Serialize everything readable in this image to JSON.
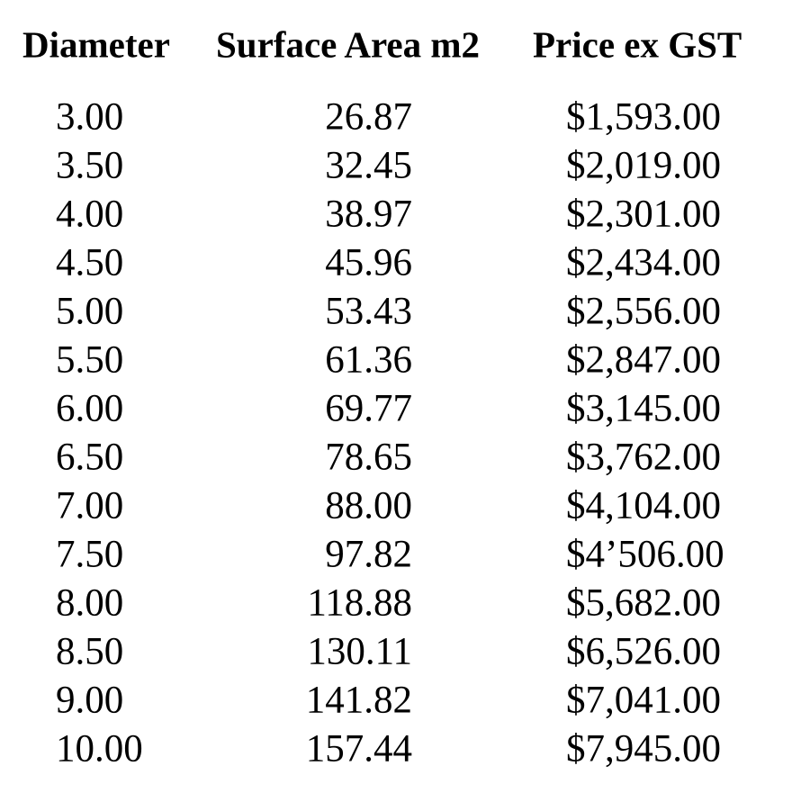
{
  "table": {
    "header": [
      "Diameter",
      "Surface Area m2",
      "Price ex GST"
    ],
    "rows": [
      [
        "3.00",
        "26.87",
        "$1,593.00"
      ],
      [
        "3.50",
        "32.45",
        "$2,019.00"
      ],
      [
        "4.00",
        "38.97",
        "$2,301.00"
      ],
      [
        "4.50",
        "45.96",
        "$2,434.00"
      ],
      [
        "5.00",
        "53.43",
        "$2,556.00"
      ],
      [
        "5.50",
        "61.36",
        "$2,847.00"
      ],
      [
        "6.00",
        "69.77",
        "$3,145.00"
      ],
      [
        "6.50",
        "78.65",
        "$3,762.00"
      ],
      [
        "7.00",
        "88.00",
        "$4,104.00"
      ],
      [
        "7.50",
        "97.82",
        "$4’506.00"
      ],
      [
        "8.00",
        "118.88",
        "$5,682.00"
      ],
      [
        "8.50",
        "130.11",
        "$6,526.00"
      ],
      [
        "9.00",
        "141.82",
        "$7,041.00"
      ],
      [
        "10.00",
        "157.44",
        "$7,945.00"
      ]
    ]
  }
}
